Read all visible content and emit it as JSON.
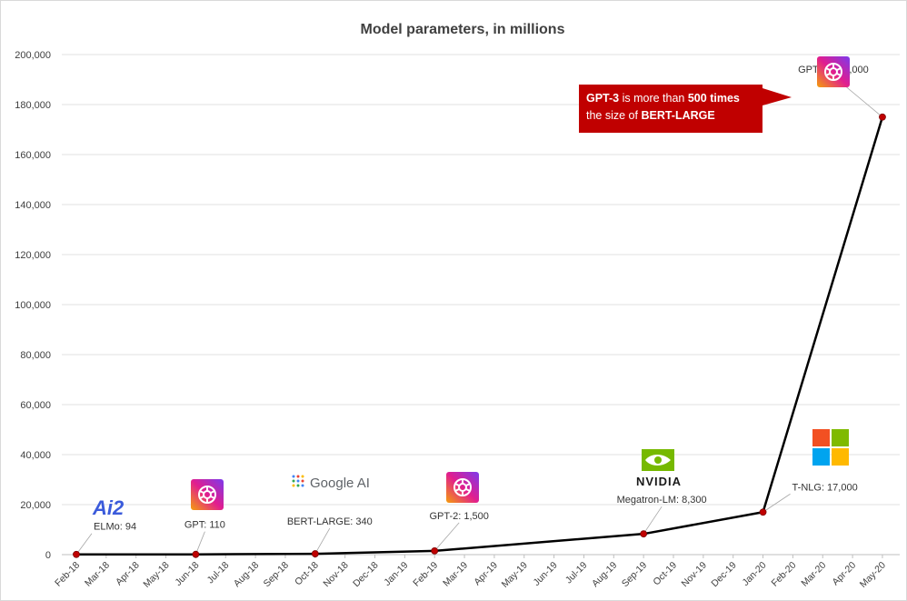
{
  "chart_data": {
    "type": "line",
    "title": "Model parameters, in millions",
    "xlabel": "",
    "ylabel": "",
    "ylim": [
      0,
      200000
    ],
    "y_ticks": [
      "0",
      "20,000",
      "40,000",
      "60,000",
      "80,000",
      "100,000",
      "120,000",
      "140,000",
      "160,000",
      "180,000",
      "200,000"
    ],
    "y_tick_values": [
      0,
      20000,
      40000,
      60000,
      80000,
      100000,
      120000,
      140000,
      160000,
      180000,
      200000
    ],
    "x_ticks": [
      "Feb-18",
      "Mar-18",
      "Apr-18",
      "May-18",
      "Jun-18",
      "Jul-18",
      "Aug-18",
      "Sep-18",
      "Oct-18",
      "Nov-18",
      "Dec-18",
      "Jan-19",
      "Feb-19",
      "Mar-19",
      "Apr-19",
      "May-19",
      "Jun-19",
      "Jul-19",
      "Aug-19",
      "Sep-19",
      "Oct-19",
      "Nov-19",
      "Dec-19",
      "Jan-20",
      "Feb-20",
      "Mar-20",
      "Apr-20",
      "May-20"
    ],
    "grid": "horizontal",
    "line_color": "#000000",
    "marker_color": "#c00000",
    "series": [
      {
        "points": [
          {
            "x": "Feb-18",
            "y": 94,
            "label": "ELMo: 94"
          },
          {
            "x": "Jun-18",
            "y": 110,
            "label": "GPT: 110"
          },
          {
            "x": "Oct-18",
            "y": 340,
            "label": "BERT-LARGE: 340"
          },
          {
            "x": "Feb-19",
            "y": 1500,
            "label": "GPT-2: 1,500"
          },
          {
            "x": "Sep-19",
            "y": 8300,
            "label": "Megatron-LM: 8,300"
          },
          {
            "x": "Jan-20",
            "y": 17000,
            "label": "T-NLG: 17,000"
          },
          {
            "x": "May-20",
            "y": 175000,
            "label": "GPT-3: 175,000"
          }
        ]
      }
    ]
  },
  "callout": {
    "line1_bold_a": "GPT-3",
    "line1_mid": " is more than ",
    "line1_bold_b": "500 times",
    "line2_pre": "the size of ",
    "line2_bold": "BERT-LARGE",
    "bg_color": "#c00000"
  },
  "logos": {
    "ai2": {
      "text": "Ai2",
      "icon": "ai2-logo",
      "color": "#3b5bdb"
    },
    "openai": {
      "icon": "openai-logo"
    },
    "google": {
      "text": "Google AI",
      "icon": "google-ai-logo"
    },
    "nvidia": {
      "text": "NVIDIA",
      "icon": "nvidia-logo",
      "color": "#76b900"
    },
    "microsoft": {
      "icon": "microsoft-logo",
      "colors": [
        "#f25022",
        "#7fba00",
        "#00a4ef",
        "#ffb900"
      ]
    }
  }
}
